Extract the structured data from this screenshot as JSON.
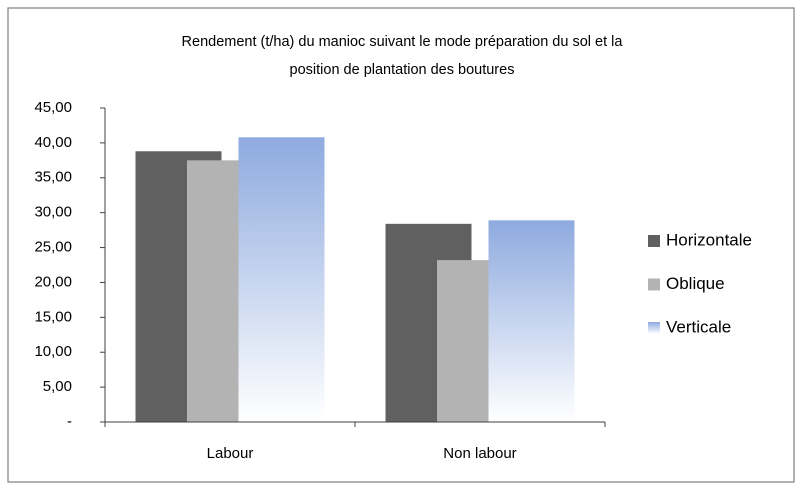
{
  "chart_data": {
    "type": "bar",
    "title": [
      "Rendement (t/ha) du manioc suivant le mode préparation du sol et la",
      "position de plantation des boutures"
    ],
    "categories": [
      "Labour",
      "Non labour"
    ],
    "series": [
      {
        "name": "Horizontale",
        "color": "#606060",
        "values": [
          38.8,
          28.4
        ]
      },
      {
        "name": "Oblique",
        "color": "#b3b3b3",
        "values": [
          37.5,
          23.2
        ]
      },
      {
        "name": "Verticale",
        "color": "#8eaadf",
        "fill": "gradient",
        "values": [
          40.8,
          28.9
        ]
      }
    ],
    "ylim": [
      0,
      45
    ],
    "yticks": [
      {
        "value": 0,
        "label": "-"
      },
      {
        "value": 5,
        "label": "5,00"
      },
      {
        "value": 10,
        "label": "10,00"
      },
      {
        "value": 15,
        "label": "15,00"
      },
      {
        "value": 20,
        "label": "20,00"
      },
      {
        "value": 25,
        "label": "25,00"
      },
      {
        "value": 30,
        "label": "30,00"
      },
      {
        "value": 35,
        "label": "35,00"
      },
      {
        "value": 40,
        "label": "40,00"
      },
      {
        "value": 45,
        "label": "45,00"
      }
    ],
    "grid": false,
    "legend": "right"
  }
}
